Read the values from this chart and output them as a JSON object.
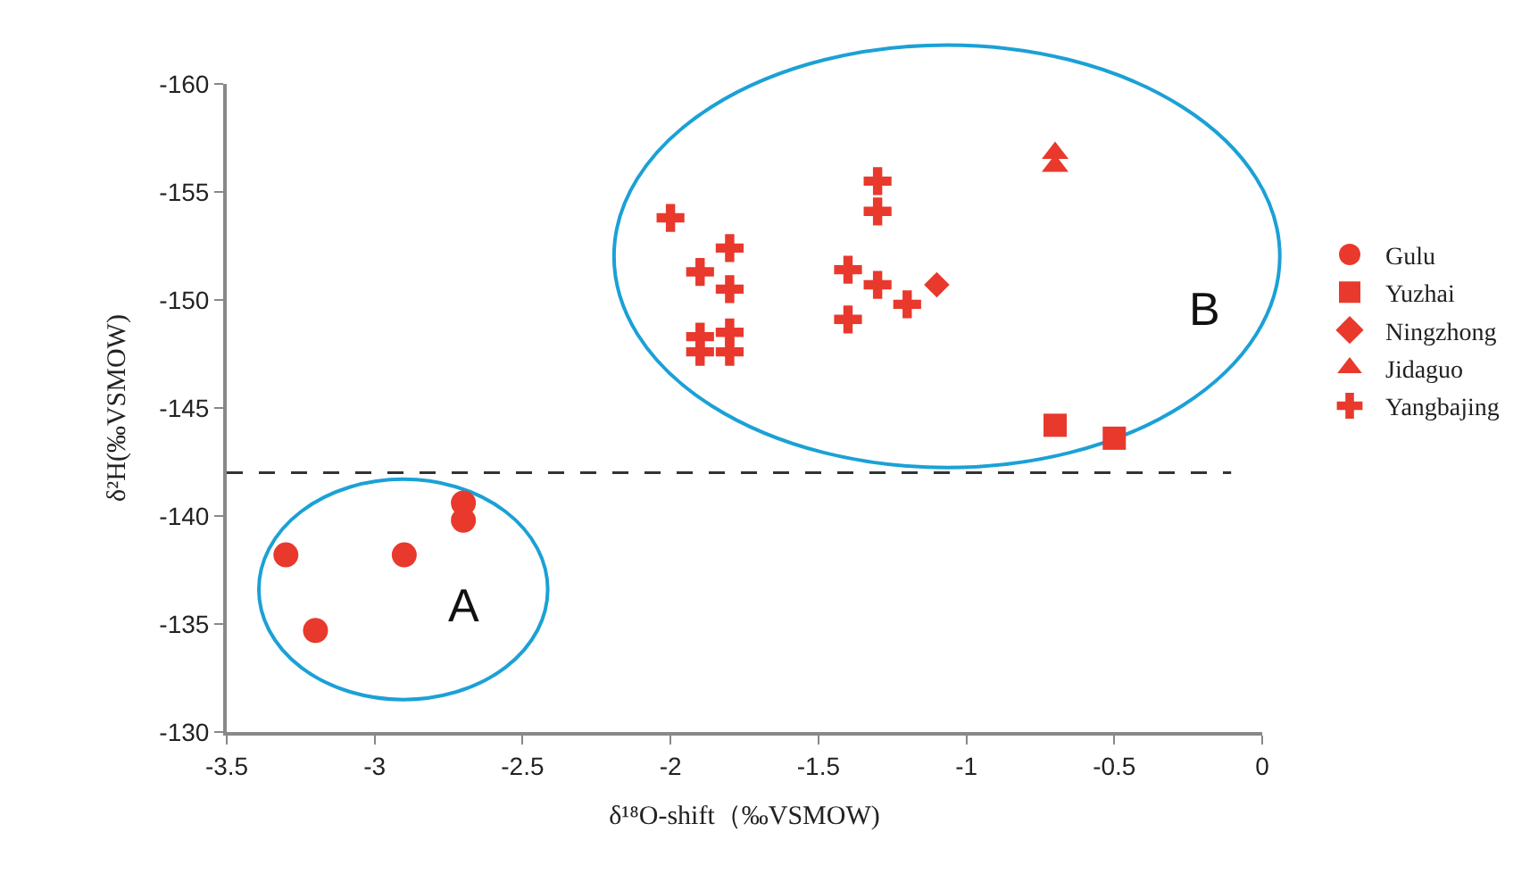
{
  "chart_data": {
    "type": "scatter",
    "xlabel": "δ¹⁸O-shift（‰VSMOW)",
    "ylabel": "δ²H(‰VSMOW)",
    "xlim": [
      -3.5,
      0
    ],
    "xticks": [
      -3.5,
      -3,
      -2.5,
      -2,
      -1.5,
      -1,
      -0.5,
      0
    ],
    "ylim": [
      -130,
      -160
    ],
    "yticks": [
      -160,
      -155,
      -150,
      -145,
      -140,
      -135,
      -130
    ],
    "grid": false,
    "legend": "right",
    "series": [
      {
        "name": "Gulu",
        "color": "#e8392c",
        "marker": "circle",
        "x": [
          -3.3,
          -3.2,
          -2.9,
          -2.7,
          -2.7
        ],
        "values": [
          -138.2,
          -134.7,
          -138.2,
          -140.6,
          -139.8
        ]
      },
      {
        "name": "Yuzhai",
        "color": "#e8392c",
        "marker": "square",
        "x": [
          -0.7,
          -0.5
        ],
        "values": [
          -144.2,
          -143.6
        ]
      },
      {
        "name": "Ningzhong",
        "color": "#e8392c",
        "marker": "diamond",
        "x": [
          -1.1
        ],
        "values": [
          -150.7
        ]
      },
      {
        "name": "Jidaguo",
        "color": "#e8392c",
        "marker": "triangle",
        "x": [
          -0.7,
          -0.7
        ],
        "values": [
          -156.8,
          -156.2
        ]
      },
      {
        "name": "Yangbajing",
        "color": "#e8392c",
        "marker": "cross",
        "x": [
          -2.0,
          -1.8,
          -1.9,
          -1.8,
          -1.9,
          -1.9,
          -1.8,
          -1.8,
          -1.3,
          -1.3,
          -1.4,
          -1.3,
          -1.2,
          -1.4
        ],
        "values": [
          -153.8,
          -152.4,
          -151.3,
          -150.5,
          -148.3,
          -147.6,
          -148.5,
          -147.6,
          -155.5,
          -154.1,
          -151.4,
          -150.7,
          -149.8,
          -149.1
        ]
      }
    ],
    "ref_lines": [
      {
        "axis": "y",
        "value": -142,
        "color": "#333333",
        "line_style": "dashed"
      }
    ],
    "annotations": [
      "A",
      "B"
    ]
  }
}
